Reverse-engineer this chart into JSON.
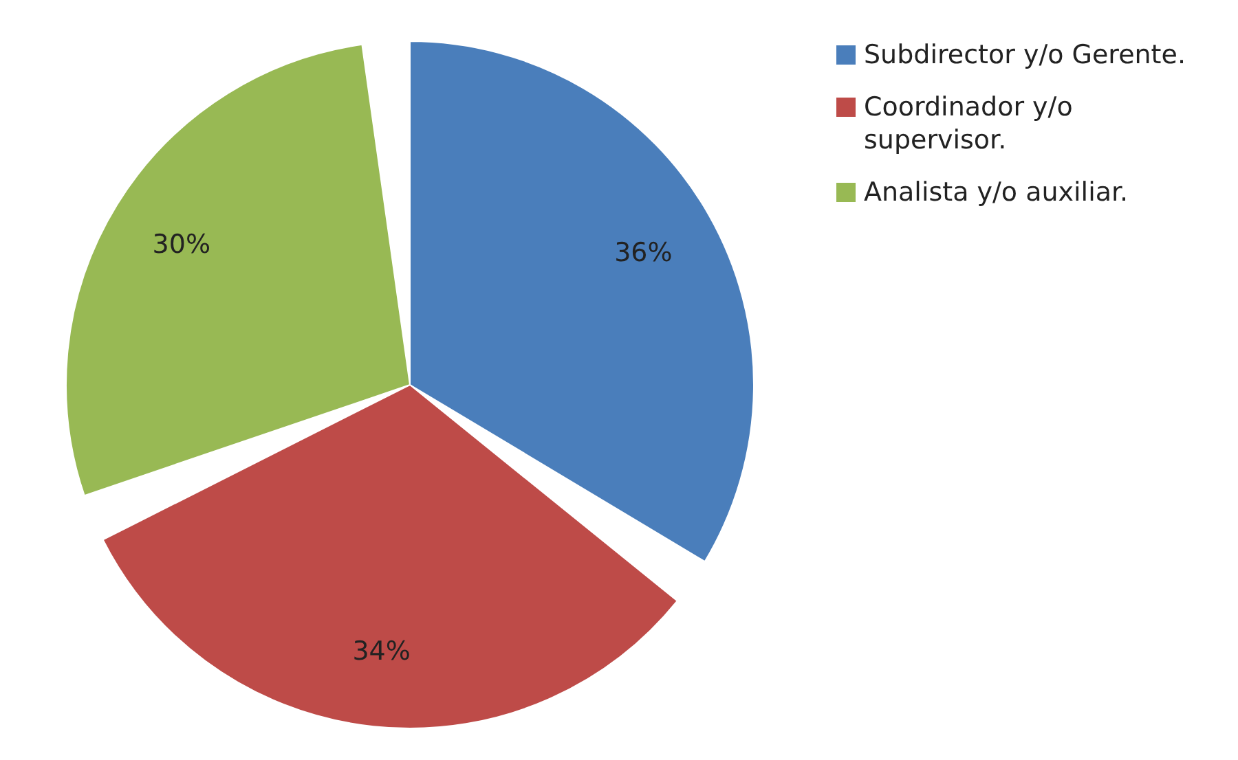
{
  "chart_data": {
    "type": "pie",
    "categories": [
      "Subdirector y/o Gerente.",
      "Coordinador y/o supervisor.",
      "Analista y/o auxiliar."
    ],
    "values": [
      36,
      34,
      30
    ],
    "value_labels": [
      "36%",
      "34%",
      "30%"
    ],
    "colors": [
      "#4a7ebb",
      "#be4b48",
      "#98b954"
    ],
    "legend": "top right"
  }
}
